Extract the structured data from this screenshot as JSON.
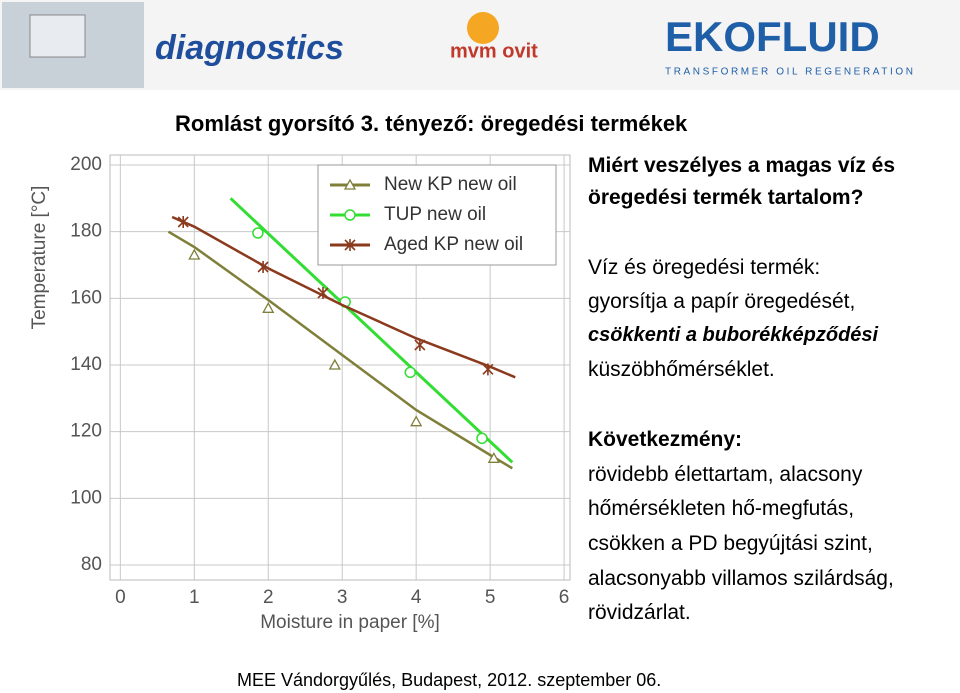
{
  "header": {
    "logos": [
      "diagnostics",
      "mvm ovit",
      "EKOFLUID",
      "TRANSFORMER OIL REGENERATION"
    ]
  },
  "title": "Romlást gyorsító 3. tényező: öregedési termékek",
  "text": {
    "question": [
      "Miért veszélyes a magas víz és",
      "öregedési termék tartalom?"
    ],
    "cause": [
      "Víz és öregedési termék:",
      "gyorsítja a papír öregedését,",
      "csökkenti a buborékképződési",
      "küszöbhőmérséklet."
    ],
    "consequence": [
      "Következmény:",
      "rövidebb élettartam, alacsony",
      "hőmérsékleten hő-megfutás,",
      "csökken a PD begyújtási szint,",
      "alacsonyabb villamos szilárdság,",
      "rövidzárlat."
    ]
  },
  "footer": "MEE Vándorgyűlés, Budapest, 2012. szeptember 06.",
  "chart_data": {
    "type": "line",
    "x_label": "Moisture in paper [%]",
    "y_label": "Temperature [°C]",
    "xlim": [
      -0.14,
      6.08
    ],
    "ylim": [
      75.5,
      203
    ],
    "xticks": [
      0,
      1,
      2,
      3,
      4,
      5,
      6
    ],
    "yticks": [
      80,
      100,
      120,
      140,
      160,
      180,
      200
    ],
    "grid": true,
    "legend": "top-right",
    "series": [
      {
        "name": "New KP new oil",
        "color": "#7f7f3a",
        "marker": "triangle",
        "x": [
          1.0,
          2.0,
          2.9,
          4.0,
          5.05
        ],
        "values": [
          173,
          157,
          140,
          123,
          112
        ],
        "fit_x": [
          0.65,
          1.0,
          2.0,
          3.0,
          4.0,
          5.0,
          5.3
        ],
        "fit_values": [
          180,
          175.4,
          159.5,
          143,
          126.5,
          113,
          109
        ]
      },
      {
        "name": "TUP new oil",
        "color": "#33dd33",
        "marker": "circle",
        "x": [
          1.86,
          3.04,
          3.92,
          4.89
        ],
        "values": [
          179.6,
          158.9,
          137.8,
          118
        ],
        "fit_x": [
          1.49,
          5.3
        ],
        "fit_values": [
          190,
          110.8
        ]
      },
      {
        "name": "Aged KP new oil",
        "color": "#8b3a1e",
        "marker": "star",
        "x": [
          0.85,
          1.93,
          2.74,
          4.05,
          4.97
        ],
        "values": [
          182.9,
          169.4,
          161.6,
          146,
          138.7
        ],
        "fit_x": [
          0.7,
          1.0,
          2.0,
          3.0,
          4.0,
          5.0,
          5.34
        ],
        "fit_values": [
          184.4,
          181.5,
          169,
          158,
          148,
          139.5,
          136.3
        ]
      }
    ]
  }
}
